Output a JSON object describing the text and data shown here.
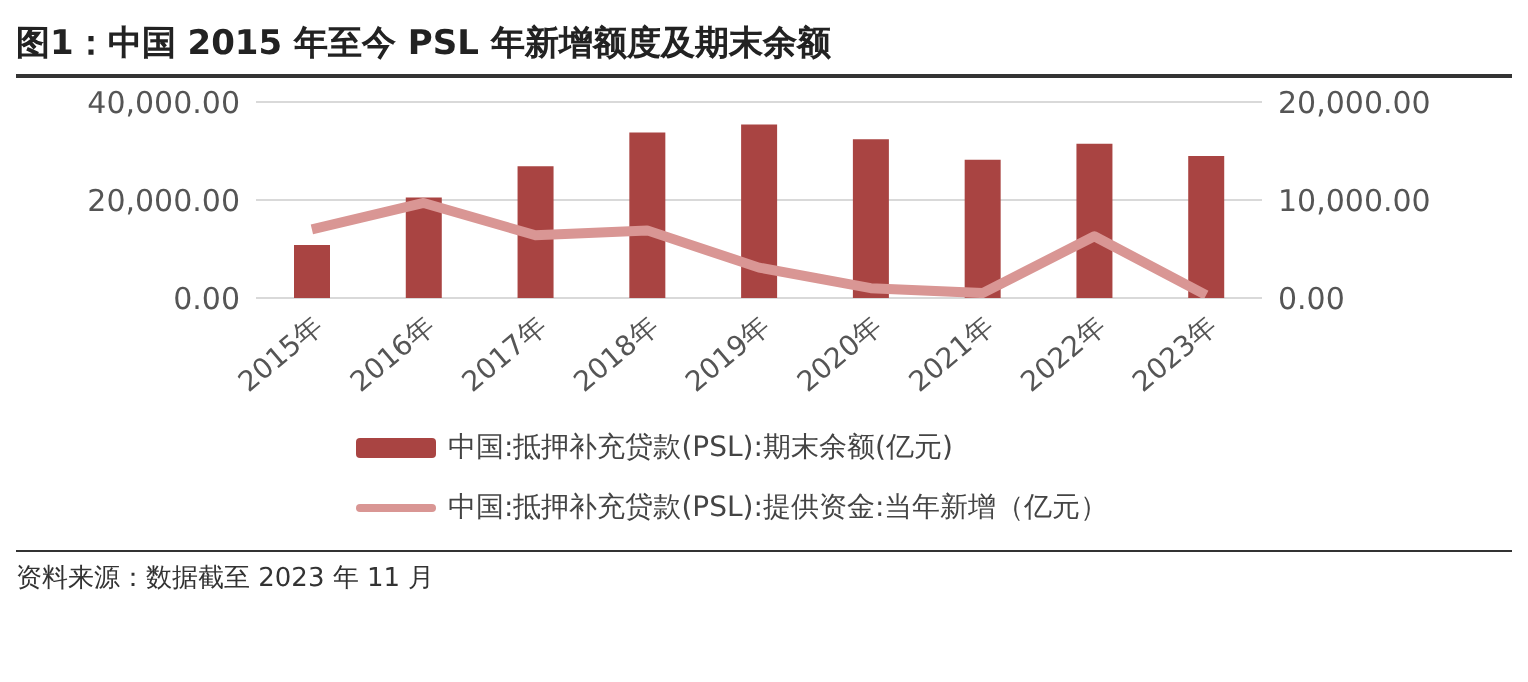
{
  "chart_data": {
    "type": "bar",
    "title": "图1：中国 2015 年至今 PSL 年新增额度及期末余额",
    "categories": [
      "2015年",
      "2016年",
      "2017年",
      "2018年",
      "2019年",
      "2020年",
      "2021年",
      "2022年",
      "2023年"
    ],
    "series": [
      {
        "name": "中国:抵押补充贷款(PSL):期末余额(亿元)",
        "color": "#a94442",
        "values": [
          10800,
          20500,
          26900,
          33800,
          35400,
          32400,
          28200,
          31500,
          29000
        ]
      },
      {
        "name": "中国:抵押补充贷款(PSL):提供资金:当年新增（亿元）",
        "type": "line",
        "axis": "y2",
        "color": "#d99694",
        "values": [
          7000,
          9700,
          6400,
          6900,
          3100,
          1000,
          500,
          6300,
          300
        ]
      }
    ],
    "ylim": [
      0,
      40000
    ],
    "yticks": [
      {
        "value": 0,
        "label": "0.00"
      },
      {
        "value": 20000,
        "label": "20,000.00"
      },
      {
        "value": 40000,
        "label": "40,000.00"
      }
    ],
    "y2lim": [
      0,
      20000
    ],
    "y2ticks": [
      {
        "value": 0,
        "label": "0.00"
      },
      {
        "value": 10000,
        "label": "10,000.00"
      },
      {
        "value": 20000,
        "label": "20,000.00"
      }
    ],
    "grid": "y",
    "legend": "bottom",
    "marker": "none",
    "annotations": [
      "资料来源：数据截至 2023 年 11 月"
    ]
  }
}
